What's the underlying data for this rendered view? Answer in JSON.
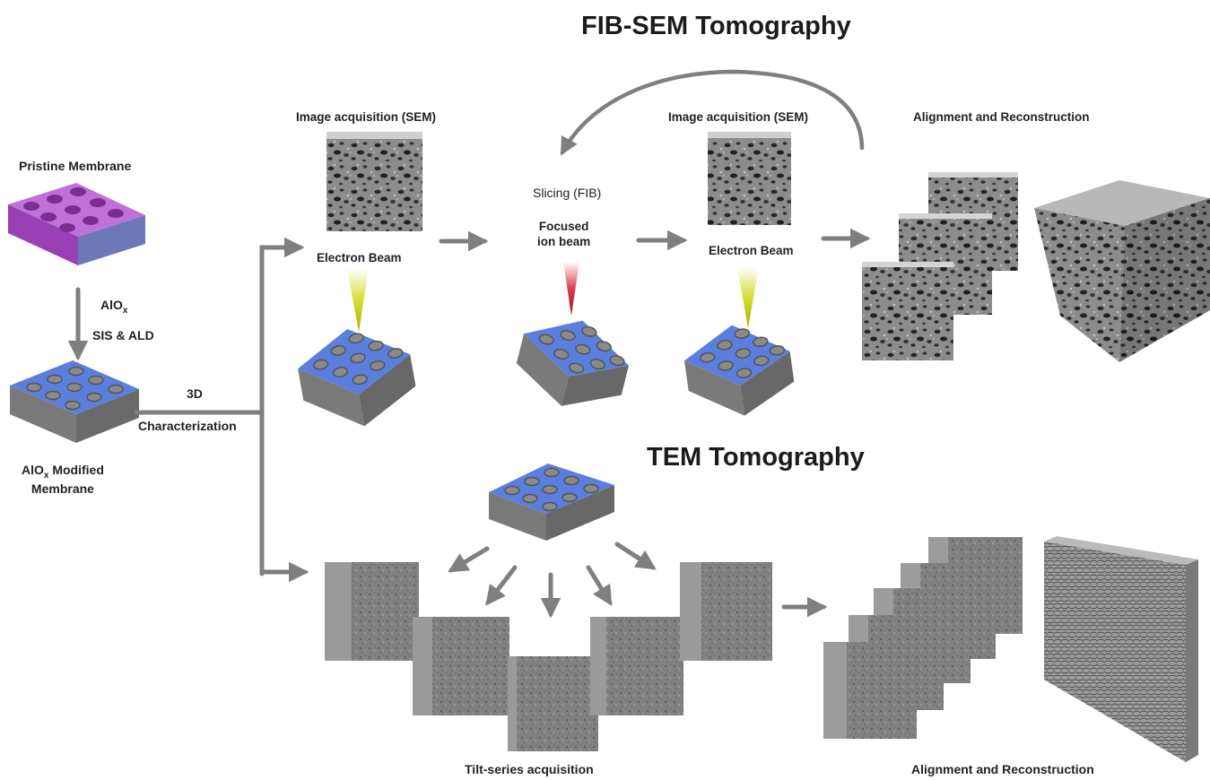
{
  "titles": {
    "fib_sem": "FIB-SEM Tomography",
    "tem": "TEM Tomography"
  },
  "left": {
    "pristine": "Pristine Membrane",
    "alox": "AlO",
    "alox_sub": "x",
    "process": "SIS & ALD",
    "modified_line1_main": "AlO",
    "modified_line1_sub": "x",
    "modified_line1_rest": " Modified",
    "modified_line2": "Membrane",
    "char_3d": "3D",
    "characterization": "Characterization"
  },
  "fib": {
    "acq1": "Image acquisition (SEM)",
    "beam1": "Electron Beam",
    "slicing": "Slicing (FIB)",
    "ion_line1": "Focused",
    "ion_line2": "ion beam",
    "acq2": "Image acquisition (SEM)",
    "beam2": "Electron Beam",
    "align": "Alignment and Reconstruction"
  },
  "tem": {
    "tilt": "Tilt-series acquisition",
    "align": "Alignment and Reconstruction"
  },
  "colors": {
    "arrow": "#7f7f7f",
    "membrane_pristine": "#b060c8",
    "membrane_modified": "#5b7fdf",
    "pore_modified": "#8a8a8a",
    "electron_beam": "#c8d400",
    "ion_beam": "#d0102a"
  }
}
